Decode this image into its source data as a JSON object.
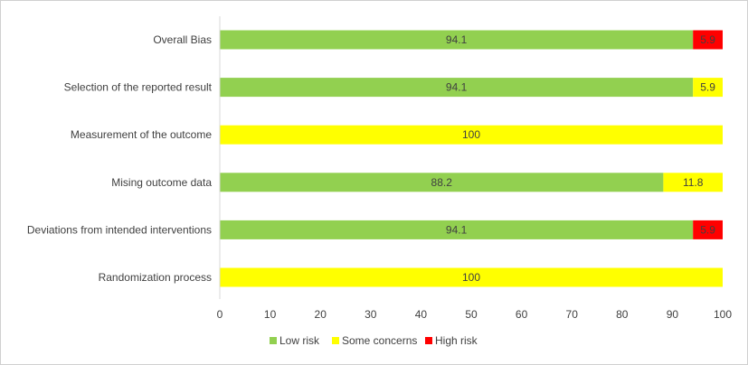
{
  "chart_data": {
    "type": "bar",
    "orientation": "horizontal",
    "stacked": true,
    "categories": [
      "Overall Bias",
      "Selection of the reported result",
      "Measurement of the outcome",
      "Mising outcome data",
      "Deviations from intended interventions",
      "Randomization process"
    ],
    "series": [
      {
        "name": "Low risk",
        "color": "#92d050",
        "values": [
          94.1,
          94.1,
          0,
          88.2,
          94.1,
          0
        ]
      },
      {
        "name": "Some concerns",
        "color": "#ffff00",
        "values": [
          0,
          5.9,
          100,
          11.8,
          0,
          100
        ]
      },
      {
        "name": "High risk",
        "color": "#ff0000",
        "values": [
          5.9,
          0,
          0,
          0,
          5.9,
          0
        ]
      }
    ],
    "xlim": [
      0,
      100
    ],
    "xticks": [
      "0",
      "10",
      "20",
      "30",
      "40",
      "50",
      "60",
      "70",
      "80",
      "90",
      "100"
    ],
    "grid": false,
    "legend": "bottom"
  }
}
